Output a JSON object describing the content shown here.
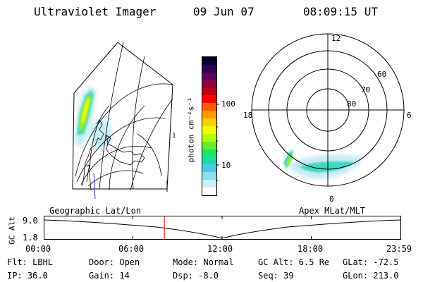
{
  "header": {
    "instrument": "Ultraviolet Imager",
    "date": "09 Jun 07",
    "time": "08:09:15 UT"
  },
  "colorbar": {
    "unit_label": "photon cm⁻²s⁻¹",
    "tick_high": "100",
    "tick_low": "10",
    "colors": [
      "#000030",
      "#300050",
      "#600060",
      "#900040",
      "#c00010",
      "#ff0000",
      "#ff5a00",
      "#ff9a00",
      "#ffd000",
      "#f0ff00",
      "#b0ff00",
      "#60ee30",
      "#20e070",
      "#20d8b0",
      "#50c8e0",
      "#90dcf0",
      "#d0f0f8",
      "#ffffff"
    ]
  },
  "polar": {
    "mlt_top": "12",
    "mlt_left": "18",
    "mlt_right": "6",
    "mlt_bottom": "0",
    "lat_60": "60",
    "lat_70": "70",
    "lat_80": "80"
  },
  "geo_map": {
    "side_mark": "i"
  },
  "track": {
    "left_title": "Geographic Lat/Lon",
    "right_title": "Apex  MLat/MLT",
    "axis_label": "GC Alt",
    "y_top": "9.0",
    "y_bottom": "1.8",
    "x_ticks": [
      "00:00",
      "06:00",
      "12:00",
      "18:00",
      "23:59"
    ],
    "current_time_fraction": 0.337
  },
  "footer": {
    "filter": "Flt: LBHL",
    "ip": "IP: 36.0",
    "door": "Door: Open",
    "gain": "Gain: 14",
    "mode": "Mode: Normal",
    "dsp": "Dsp:   -8.0",
    "gc_alt": "GC Alt: 6.5 Re",
    "seq": "Seq: 39",
    "glat": "GLat: -72.5",
    "glon": "GLon: 213.0"
  }
}
